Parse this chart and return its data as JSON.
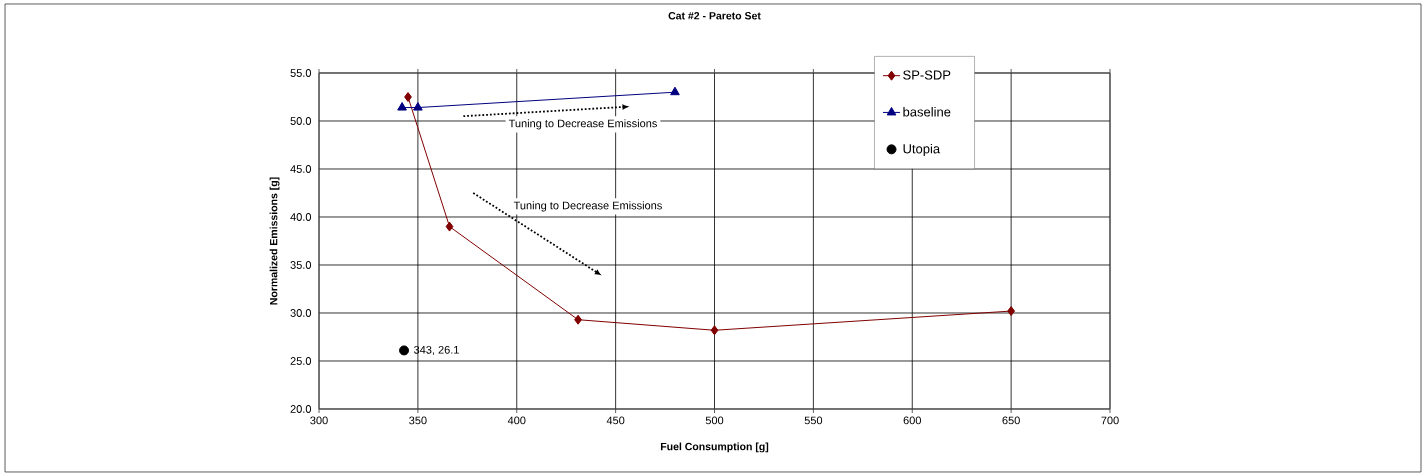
{
  "chart_data": {
    "type": "line",
    "title": "Cat #2 - Pareto Set",
    "xlabel": "Fuel Consumption [g]",
    "ylabel": "Normalized Emissions [g]",
    "series": [
      {
        "name": "SP-SDP",
        "type": "line",
        "color": "#800000",
        "marker": "diamond",
        "x": [
          345,
          366,
          431,
          500,
          650
        ],
        "values": [
          52.5,
          39.0,
          29.3,
          28.2,
          30.2
        ]
      },
      {
        "name": "baseline",
        "type": "line",
        "color": "#000080",
        "marker": "triangle",
        "x": [
          342,
          350,
          480
        ],
        "values": [
          51.4,
          51.4,
          53.0
        ]
      },
      {
        "name": "Utopia",
        "type": "scatter",
        "color": "#000000",
        "marker": "circle",
        "x": [
          343
        ],
        "values": [
          26.1
        ],
        "value_labels": [
          "343, 26.1"
        ]
      }
    ],
    "annotations": [
      "Tuning to Decrease Emissions",
      "Tuning to Decrease Emissions"
    ],
    "xlim": [
      300,
      700
    ],
    "xticks": [
      300,
      350,
      400,
      450,
      500,
      550,
      600,
      650,
      700
    ],
    "ylim": [
      20,
      55
    ],
    "yticks": [
      {
        "value": 20,
        "label": "20.0"
      },
      {
        "value": 25,
        "label": "25.0"
      },
      {
        "value": 30,
        "label": "30.0"
      },
      {
        "value": 35,
        "label": "35.0"
      },
      {
        "value": 40,
        "label": "40.0"
      },
      {
        "value": 45,
        "label": "45.0"
      },
      {
        "value": 50,
        "label": "50.0"
      },
      {
        "value": 55,
        "label": "55.0"
      }
    ],
    "grid": true,
    "legend": "top right"
  }
}
